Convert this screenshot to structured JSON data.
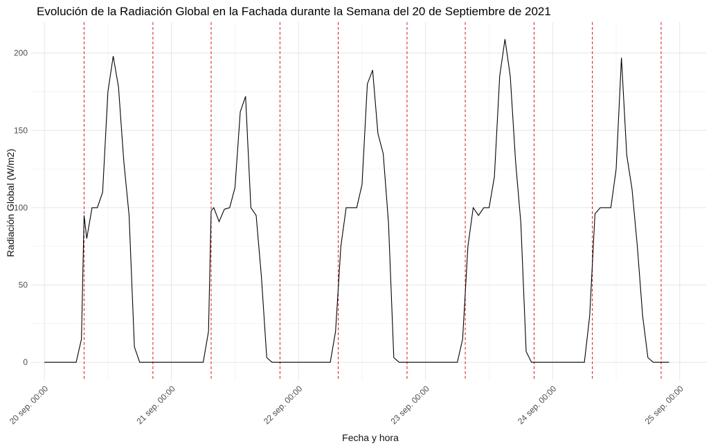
{
  "chart_data": {
    "type": "line",
    "title": "Evolución de la Radiación Global en la Fachada durante la Semana del 20 de Septiembre de 2021",
    "xlabel": "Fecha y hora",
    "ylabel": "Radiación Global (W/m2)",
    "x_ticks": [
      {
        "value": "2021-09-20T00:00",
        "label": "20 sep. 00:00"
      },
      {
        "value": "2021-09-21T00:00",
        "label": "21 sep. 00:00"
      },
      {
        "value": "2021-09-22T00:00",
        "label": "22 sep. 00:00"
      },
      {
        "value": "2021-09-23T00:00",
        "label": "23 sep. 00:00"
      },
      {
        "value": "2021-09-24T00:00",
        "label": "24 sep. 00:00"
      },
      {
        "value": "2021-09-25T00:00",
        "label": "25 sep. 00:00"
      }
    ],
    "y_ticks": [
      0,
      50,
      100,
      150,
      200
    ],
    "xlim": [
      "2021-09-19T21:30",
      "2021-09-25T05:00"
    ],
    "ylim": [
      -12,
      220
    ],
    "grid": true,
    "line_color": "#000000",
    "vline_color": "#d7191c",
    "vlines": [
      "2021-09-20T07:30",
      "2021-09-20T20:30",
      "2021-09-21T07:30",
      "2021-09-21T20:30",
      "2021-09-22T07:30",
      "2021-09-22T20:30",
      "2021-09-23T07:30",
      "2021-09-23T20:30",
      "2021-09-24T07:30",
      "2021-09-24T20:30"
    ],
    "series": [
      {
        "x": [
          "2021-09-20T00:00",
          "2021-09-20T06:00",
          "2021-09-20T07:00",
          "2021-09-20T07:30",
          "2021-09-20T08:00",
          "2021-09-20T08:30",
          "2021-09-20T09:00",
          "2021-09-20T10:00",
          "2021-09-20T11:00",
          "2021-09-20T12:00",
          "2021-09-20T13:00",
          "2021-09-20T14:00",
          "2021-09-20T15:00",
          "2021-09-20T16:00",
          "2021-09-20T17:00",
          "2021-09-20T18:00",
          "2021-09-20T19:00",
          "2021-09-20T20:00",
          "2021-09-21T06:00",
          "2021-09-21T07:00",
          "2021-09-21T07:30",
          "2021-09-21T08:00",
          "2021-09-21T09:00",
          "2021-09-21T10:00",
          "2021-09-21T11:00",
          "2021-09-21T12:00",
          "2021-09-21T13:00",
          "2021-09-21T14:00",
          "2021-09-21T15:00",
          "2021-09-21T16:00",
          "2021-09-21T17:00",
          "2021-09-21T18:00",
          "2021-09-21T19:00",
          "2021-09-21T20:00",
          "2021-09-22T06:00",
          "2021-09-22T07:00",
          "2021-09-22T08:00",
          "2021-09-22T09:00",
          "2021-09-22T10:00",
          "2021-09-22T11:00",
          "2021-09-22T12:00",
          "2021-09-22T13:00",
          "2021-09-22T14:00",
          "2021-09-22T15:00",
          "2021-09-22T16:00",
          "2021-09-22T17:00",
          "2021-09-22T18:00",
          "2021-09-22T19:00",
          "2021-09-22T20:00",
          "2021-09-23T06:00",
          "2021-09-23T07:00",
          "2021-09-23T08:00",
          "2021-09-23T09:00",
          "2021-09-23T10:00",
          "2021-09-23T11:00",
          "2021-09-23T12:00",
          "2021-09-23T13:00",
          "2021-09-23T14:00",
          "2021-09-23T15:00",
          "2021-09-23T16:00",
          "2021-09-23T17:00",
          "2021-09-23T18:00",
          "2021-09-23T19:00",
          "2021-09-23T20:00",
          "2021-09-24T06:00",
          "2021-09-24T07:00",
          "2021-09-24T08:00",
          "2021-09-24T09:00",
          "2021-09-24T10:00",
          "2021-09-24T11:00",
          "2021-09-24T12:00",
          "2021-09-24T13:00",
          "2021-09-24T14:00",
          "2021-09-24T15:00",
          "2021-09-24T16:00",
          "2021-09-24T17:00",
          "2021-09-24T18:00",
          "2021-09-24T19:00",
          "2021-09-24T20:00",
          "2021-09-24T22:00"
        ],
        "y": [
          0,
          0,
          15,
          95,
          80,
          90,
          100,
          100,
          110,
          175,
          198,
          178,
          130,
          95,
          10,
          0,
          0,
          0,
          0,
          20,
          98,
          100,
          91,
          99,
          100,
          113,
          162,
          172,
          100,
          95,
          55,
          3,
          0,
          0,
          0,
          20,
          75,
          100,
          100,
          100,
          115,
          180,
          189,
          148,
          135,
          90,
          3,
          0,
          0,
          0,
          15,
          75,
          100,
          95,
          100,
          100,
          120,
          185,
          209,
          185,
          130,
          90,
          7,
          0,
          0,
          30,
          96,
          100,
          100,
          100,
          125,
          197,
          134,
          112,
          75,
          30,
          3,
          0,
          0,
          0
        ]
      }
    ]
  }
}
